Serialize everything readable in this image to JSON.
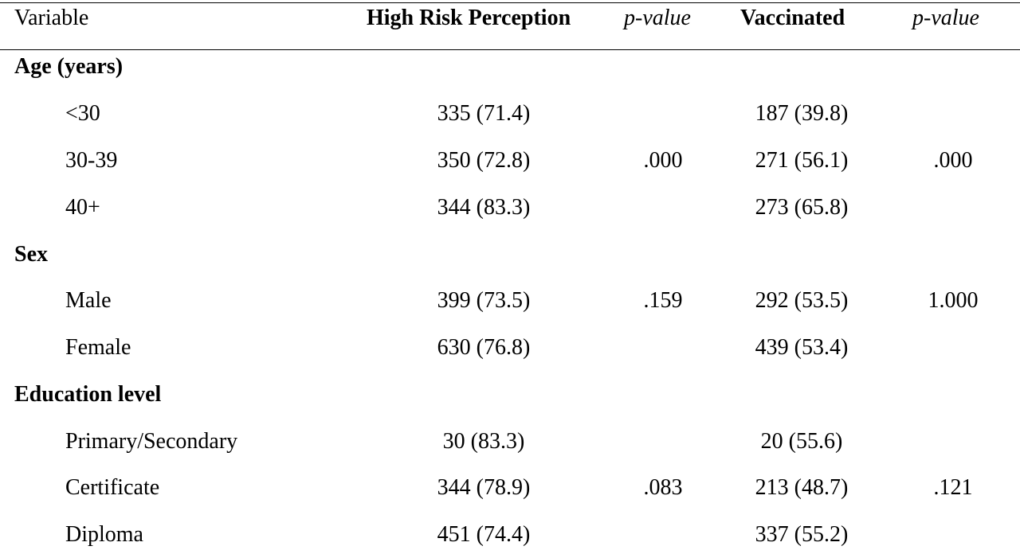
{
  "header": {
    "variable": "Variable",
    "high_risk": "High Risk Perception",
    "p_value_1": "p-value",
    "vaccinated": "Vaccinated",
    "p_value_2": "p-value"
  },
  "sections": [
    {
      "title": "Age (years)",
      "rows": [
        {
          "label": "<30",
          "high_risk": "335 (71.4)",
          "vaccinated": "187 (39.8)"
        },
        {
          "label": "30-39",
          "high_risk": "350 (72.8)",
          "vaccinated": "271 (56.1)"
        },
        {
          "label": "40+",
          "high_risk": "344 (83.3)",
          "vaccinated": "273 (65.8)"
        }
      ],
      "p_high_risk": ".000",
      "p_vaccinated": ".000"
    },
    {
      "title": "Sex",
      "rows": [
        {
          "label": "Male",
          "high_risk": "399 (73.5)",
          "vaccinated": "292 (53.5)"
        },
        {
          "label": "Female",
          "high_risk": "630 (76.8)",
          "vaccinated": "439 (53.4)"
        }
      ],
      "p_high_risk": ".159",
      "p_vaccinated": "1.000"
    },
    {
      "title": "Education level",
      "rows": [
        {
          "label": "Primary/Secondary",
          "high_risk": "30 (83.3)",
          "vaccinated": "20 (55.6)"
        },
        {
          "label": "Certificate",
          "high_risk": "344 (78.9)",
          "vaccinated": "213 (48.7)"
        },
        {
          "label": "Diploma",
          "high_risk": "451 (74.4)",
          "vaccinated": "337 (55.2)"
        }
      ],
      "p_high_risk": ".083",
      "p_vaccinated": ".121"
    }
  ]
}
